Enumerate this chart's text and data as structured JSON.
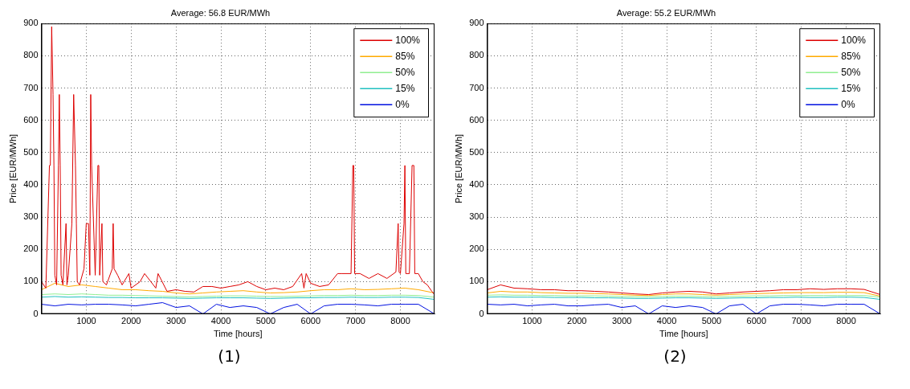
{
  "chart_data": [
    {
      "type": "line",
      "title": "Average: 56.8 EUR/MWh",
      "xlabel": "Time [hours]",
      "ylabel": "Price [EUR/MWh]",
      "annotations": [
        "(1)"
      ],
      "xlim": [
        1,
        8760
      ],
      "xticks": [
        1000,
        2000,
        3000,
        4000,
        5000,
        6000,
        7000,
        8000
      ],
      "ylim": [
        0,
        900
      ],
      "yticks": [
        0,
        100,
        200,
        300,
        400,
        500,
        600,
        700,
        800,
        900
      ],
      "grid": true,
      "legend": "top right",
      "marker": "none",
      "line_style": "solid",
      "series": [
        {
          "name": "100%",
          "color": "#dd0000",
          "x": [
            1,
            100,
            180,
            200,
            230,
            260,
            280,
            300,
            340,
            380,
            400,
            420,
            440,
            480,
            550,
            570,
            600,
            680,
            720,
            760,
            780,
            800,
            850,
            950,
            1000,
            1050,
            1080,
            1100,
            1120,
            1200,
            1260,
            1280,
            1300,
            1350,
            1370,
            1450,
            1580,
            1600,
            1620,
            1700,
            1800,
            1950,
            2000,
            2200,
            2300,
            2550,
            2600,
            2800,
            3000,
            3200,
            3400,
            3600,
            3800,
            4000,
            4200,
            4400,
            4600,
            4800,
            5000,
            5200,
            5400,
            5600,
            5800,
            5850,
            5900,
            6000,
            6200,
            6400,
            6600,
            6700,
            6900,
            6940,
            6960,
            6980,
            7100,
            7300,
            7500,
            7700,
            7900,
            7950,
            7970,
            8000,
            8080,
            8100,
            8120,
            8200,
            8260,
            8300,
            8320,
            8400,
            8500,
            8600,
            8700,
            8760
          ],
          "values": [
            100,
            80,
            460,
            460,
            890,
            680,
            460,
            120,
            90,
            460,
            680,
            460,
            120,
            90,
            280,
            90,
            120,
            280,
            680,
            460,
            280,
            100,
            90,
            140,
            280,
            280,
            120,
            680,
            460,
            120,
            460,
            460,
            120,
            280,
            100,
            90,
            140,
            280,
            140,
            120,
            90,
            125,
            80,
            100,
            125,
            80,
            125,
            70,
            75,
            70,
            68,
            85,
            85,
            80,
            85,
            90,
            100,
            85,
            75,
            80,
            75,
            85,
            125,
            80,
            125,
            95,
            85,
            90,
            125,
            125,
            125,
            460,
            460,
            125,
            125,
            110,
            125,
            110,
            130,
            280,
            130,
            125,
            280,
            460,
            125,
            125,
            460,
            460,
            125,
            125,
            100,
            90,
            70,
            60
          ]
        },
        {
          "name": "85%",
          "color": "#ffaa00",
          "x": [
            1,
            300,
            600,
            900,
            1200,
            1500,
            1800,
            2100,
            2400,
            2700,
            3000,
            3300,
            3600,
            3900,
            4200,
            4500,
            4800,
            5100,
            5400,
            5700,
            6000,
            6300,
            6600,
            6900,
            7200,
            7500,
            7800,
            8100,
            8400,
            8760
          ],
          "values": [
            75,
            95,
            85,
            90,
            85,
            80,
            75,
            75,
            72,
            70,
            65,
            62,
            65,
            68,
            70,
            72,
            68,
            65,
            66,
            68,
            72,
            75,
            75,
            78,
            75,
            76,
            78,
            80,
            75,
            65
          ]
        },
        {
          "name": "50%",
          "color": "#90ee90",
          "x": [
            1,
            300,
            600,
            900,
            1200,
            1500,
            1800,
            2100,
            2400,
            2700,
            3000,
            3300,
            3600,
            3900,
            4200,
            4500,
            4800,
            5100,
            5400,
            5700,
            6000,
            6300,
            6600,
            6900,
            7200,
            7500,
            7800,
            8100,
            8400,
            8760
          ],
          "values": [
            60,
            62,
            60,
            62,
            60,
            58,
            58,
            57,
            56,
            55,
            54,
            53,
            54,
            55,
            56,
            56,
            55,
            54,
            54,
            55,
            56,
            57,
            57,
            58,
            57,
            57,
            58,
            58,
            57,
            52
          ]
        },
        {
          "name": "15%",
          "color": "#20c0c0",
          "x": [
            1,
            300,
            600,
            900,
            1200,
            1500,
            1800,
            2100,
            2400,
            2700,
            3000,
            3300,
            3600,
            3900,
            4200,
            4500,
            4800,
            5100,
            5400,
            5700,
            6000,
            6300,
            6600,
            6900,
            7200,
            7500,
            7800,
            8100,
            8400,
            8760
          ],
          "values": [
            52,
            54,
            52,
            53,
            52,
            51,
            51,
            50,
            50,
            50,
            49,
            48,
            49,
            50,
            50,
            50,
            49,
            48,
            49,
            50,
            50,
            51,
            51,
            52,
            51,
            51,
            52,
            52,
            51,
            45
          ]
        },
        {
          "name": "0%",
          "color": "#0010e0",
          "x": [
            1,
            300,
            600,
            900,
            1200,
            1500,
            1800,
            2100,
            2400,
            2700,
            3000,
            3300,
            3600,
            3900,
            4200,
            4500,
            4800,
            5100,
            5400,
            5700,
            6000,
            6300,
            6600,
            6900,
            7200,
            7500,
            7800,
            8100,
            8400,
            8760
          ],
          "values": [
            30,
            25,
            30,
            28,
            30,
            30,
            28,
            25,
            30,
            35,
            20,
            25,
            0,
            30,
            20,
            25,
            20,
            0,
            20,
            30,
            0,
            25,
            30,
            30,
            28,
            25,
            30,
            30,
            30,
            0
          ]
        }
      ]
    },
    {
      "type": "line",
      "title": "Average: 55.2 EUR/MWh",
      "xlabel": "Time [hours]",
      "ylabel": "Price [EUR/MWh]",
      "annotations": [
        "(2)"
      ],
      "xlim": [
        1,
        8760
      ],
      "xticks": [
        1000,
        2000,
        3000,
        4000,
        5000,
        6000,
        7000,
        8000
      ],
      "ylim": [
        0,
        900
      ],
      "yticks": [
        0,
        100,
        200,
        300,
        400,
        500,
        600,
        700,
        800,
        900
      ],
      "grid": true,
      "legend": "top right",
      "marker": "none",
      "line_style": "solid",
      "series": [
        {
          "name": "100%",
          "color": "#dd0000",
          "x": [
            1,
            300,
            600,
            900,
            1200,
            1500,
            1800,
            2100,
            2400,
            2700,
            3000,
            3300,
            3600,
            3900,
            4200,
            4500,
            4800,
            5100,
            5400,
            5700,
            6000,
            6300,
            6600,
            6900,
            7200,
            7500,
            7800,
            8100,
            8400,
            8760
          ],
          "values": [
            75,
            90,
            80,
            78,
            75,
            75,
            72,
            72,
            70,
            68,
            65,
            62,
            60,
            65,
            68,
            70,
            68,
            62,
            65,
            68,
            70,
            72,
            75,
            75,
            78,
            76,
            78,
            78,
            76,
            60
          ]
        },
        {
          "name": "85%",
          "color": "#ffaa00",
          "x": [
            1,
            300,
            600,
            900,
            1200,
            1500,
            1800,
            2100,
            2400,
            2700,
            3000,
            3300,
            3600,
            3900,
            4200,
            4500,
            4800,
            5100,
            5400,
            5700,
            6000,
            6300,
            6600,
            6900,
            7200,
            7500,
            7800,
            8100,
            8400,
            8760
          ],
          "values": [
            65,
            70,
            68,
            68,
            66,
            65,
            64,
            64,
            63,
            62,
            60,
            58,
            57,
            60,
            62,
            62,
            60,
            58,
            60,
            62,
            63,
            64,
            65,
            66,
            66,
            66,
            67,
            67,
            66,
            55
          ]
        },
        {
          "name": "50%",
          "color": "#90ee90",
          "x": [
            1,
            300,
            600,
            900,
            1200,
            1500,
            1800,
            2100,
            2400,
            2700,
            3000,
            3300,
            3600,
            3900,
            4200,
            4500,
            4800,
            5100,
            5400,
            5700,
            6000,
            6300,
            6600,
            6900,
            7200,
            7500,
            7800,
            8100,
            8400,
            8760
          ],
          "values": [
            58,
            59,
            58,
            58,
            57,
            57,
            56,
            56,
            56,
            55,
            54,
            53,
            53,
            54,
            55,
            55,
            54,
            53,
            54,
            55,
            56,
            56,
            57,
            57,
            57,
            57,
            57,
            57,
            57,
            52
          ]
        },
        {
          "name": "15%",
          "color": "#20c0c0",
          "x": [
            1,
            300,
            600,
            900,
            1200,
            1500,
            1800,
            2100,
            2400,
            2700,
            3000,
            3300,
            3600,
            3900,
            4200,
            4500,
            4800,
            5100,
            5400,
            5700,
            6000,
            6300,
            6600,
            6900,
            7200,
            7500,
            7800,
            8100,
            8400,
            8760
          ],
          "values": [
            52,
            53,
            52,
            52,
            52,
            51,
            51,
            51,
            50,
            50,
            49,
            48,
            48,
            49,
            50,
            50,
            49,
            48,
            49,
            50,
            50,
            51,
            51,
            52,
            51,
            51,
            52,
            52,
            51,
            45
          ]
        },
        {
          "name": "0%",
          "color": "#0010e0",
          "x": [
            1,
            300,
            600,
            900,
            1200,
            1500,
            1800,
            2100,
            2400,
            2700,
            3000,
            3300,
            3600,
            3900,
            4200,
            4500,
            4800,
            5100,
            5400,
            5700,
            6000,
            6300,
            6600,
            6900,
            7200,
            7500,
            7800,
            8100,
            8400,
            8760
          ],
          "values": [
            30,
            28,
            30,
            25,
            28,
            30,
            25,
            25,
            28,
            30,
            20,
            25,
            0,
            25,
            20,
            25,
            20,
            0,
            25,
            30,
            0,
            25,
            30,
            30,
            28,
            25,
            30,
            30,
            30,
            0
          ]
        }
      ]
    }
  ]
}
